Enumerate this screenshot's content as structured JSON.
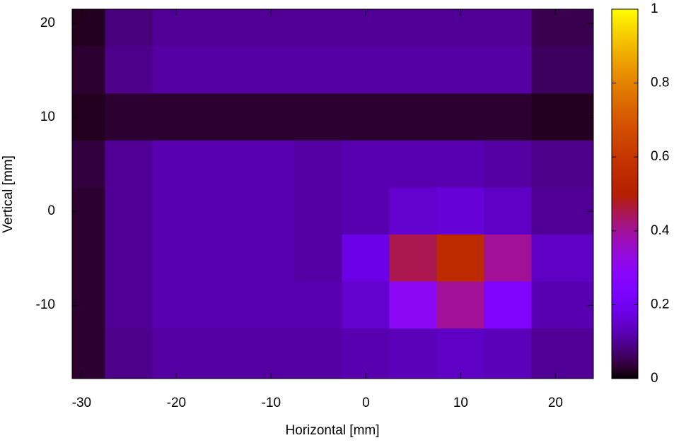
{
  "chart_data": {
    "type": "heatmap",
    "xlabel": "Horizontal [mm]",
    "ylabel": "Vertical [mm]",
    "x": [
      -30,
      -25,
      -20,
      -15,
      -10,
      -5,
      0,
      5,
      10,
      15,
      20
    ],
    "y": [
      20,
      15,
      10,
      5,
      0,
      -5,
      -10,
      -15
    ],
    "z": [
      [
        0.02,
        0.08,
        0.1,
        0.1,
        0.1,
        0.1,
        0.1,
        0.1,
        0.1,
        0.1,
        0.05
      ],
      [
        0.03,
        0.09,
        0.11,
        0.11,
        0.11,
        0.11,
        0.11,
        0.11,
        0.11,
        0.11,
        0.06
      ],
      [
        0.02,
        0.03,
        0.03,
        0.03,
        0.03,
        0.03,
        0.03,
        0.03,
        0.03,
        0.03,
        0.02
      ],
      [
        0.04,
        0.1,
        0.12,
        0.12,
        0.12,
        0.11,
        0.12,
        0.12,
        0.12,
        0.11,
        0.09
      ],
      [
        0.03,
        0.1,
        0.12,
        0.12,
        0.12,
        0.11,
        0.12,
        0.15,
        0.16,
        0.14,
        0.1
      ],
      [
        0.03,
        0.1,
        0.12,
        0.12,
        0.12,
        0.11,
        0.18,
        0.45,
        0.55,
        0.4,
        0.14
      ],
      [
        0.03,
        0.1,
        0.12,
        0.12,
        0.12,
        0.12,
        0.15,
        0.3,
        0.4,
        0.25,
        0.12
      ],
      [
        0.03,
        0.09,
        0.11,
        0.11,
        0.11,
        0.11,
        0.12,
        0.13,
        0.14,
        0.13,
        0.1
      ]
    ],
    "xlim": [
      -31,
      24
    ],
    "xticks": [
      -30,
      -20,
      -10,
      0,
      10,
      20
    ],
    "ylim": [
      -17.8,
      21.5
    ],
    "yticks": [
      -10,
      0,
      10,
      20
    ],
    "cblim": [
      0,
      1
    ],
    "cbticks": [
      0,
      0.2,
      0.4,
      0.6,
      0.8,
      1
    ],
    "colormap": "gnuplot"
  }
}
